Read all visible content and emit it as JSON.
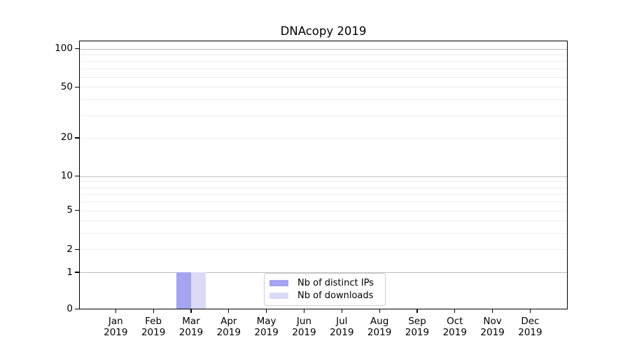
{
  "page": {
    "background": "#ffffff"
  },
  "chart_data": {
    "type": "bar",
    "title": "DNAcopy 2019",
    "x_year": "2019",
    "categories": [
      "Jan",
      "Feb",
      "Mar",
      "Apr",
      "May",
      "Jun",
      "Jul",
      "Aug",
      "Sep",
      "Oct",
      "Nov",
      "Dec"
    ],
    "series": [
      {
        "name": "Nb of distinct IPs",
        "color": "#a4a4f2",
        "values": [
          0,
          0,
          1,
          0,
          0,
          0,
          0,
          0,
          0,
          0,
          0,
          0
        ]
      },
      {
        "name": "Nb of downloads",
        "color": "#dadaf8",
        "values": [
          0,
          0,
          1,
          0,
          0,
          0,
          0,
          0,
          0,
          0,
          0,
          0
        ]
      }
    ],
    "yticks": [
      {
        "value": 0,
        "label": "0"
      },
      {
        "value": 1,
        "label": "1"
      },
      {
        "value": 2,
        "label": "2"
      },
      {
        "value": 5,
        "label": "5"
      },
      {
        "value": 10,
        "label": "10"
      },
      {
        "value": 20,
        "label": "20"
      },
      {
        "value": 50,
        "label": "50"
      },
      {
        "value": 100,
        "label": "100"
      }
    ],
    "yscale": "log-like",
    "grid": "horizontal",
    "y_major_gridlines": [
      1,
      10,
      100
    ],
    "y_minor_gridlines": [
      2,
      3,
      4,
      5,
      6,
      7,
      8,
      9,
      20,
      30,
      40,
      50,
      60,
      70,
      80,
      90
    ],
    "legend_position": "bottom-center",
    "colors": {
      "axis": "#000000",
      "text": "#000000",
      "major_grid": "#bdbdbd",
      "minor_grid": "#ededed",
      "legend_border": "#cccccc"
    }
  }
}
